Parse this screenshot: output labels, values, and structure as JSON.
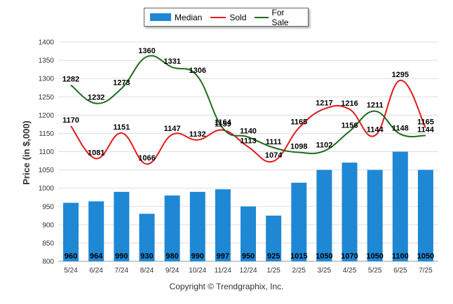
{
  "chart_data": {
    "type": "bar",
    "categories": [
      "5/24",
      "6/24",
      "7/24",
      "8/24",
      "9/24",
      "10/24",
      "11/24",
      "12/24",
      "1/25",
      "2/25",
      "3/25",
      "4/25",
      "5/25",
      "6/25",
      "7/25"
    ],
    "ylabel": "Price (in $,000)",
    "ylim": [
      800,
      1400
    ],
    "yticks": [
      800,
      850,
      900,
      950,
      1000,
      1050,
      1100,
      1150,
      1200,
      1250,
      1300,
      1350,
      1400
    ],
    "grid": true,
    "legend_position": "top-center",
    "series": [
      {
        "name": "Median",
        "kind": "bar",
        "color": "#1f88d4",
        "values": [
          960,
          964,
          990,
          930,
          980,
          990,
          997,
          950,
          925,
          1015,
          1050,
          1070,
          1050,
          1100,
          1050
        ]
      },
      {
        "name": "Sold",
        "kind": "line",
        "color": "#e31a1c",
        "values": [
          1170,
          1081,
          1151,
          1066,
          1147,
          1132,
          1159,
          1113,
          1074,
          1165,
          1217,
          1216,
          1144,
          1295,
          1165
        ]
      },
      {
        "name": "For Sale",
        "kind": "line",
        "color": "#1e6b1e",
        "values": [
          1282,
          1232,
          1273,
          1360,
          1331,
          1306,
          1164,
          1140,
          1111,
          1098,
          1102,
          1156,
          1211,
          1148,
          1144
        ]
      }
    ]
  },
  "footer": {
    "copyright": "Copyright © Trendgraphix, Inc."
  }
}
